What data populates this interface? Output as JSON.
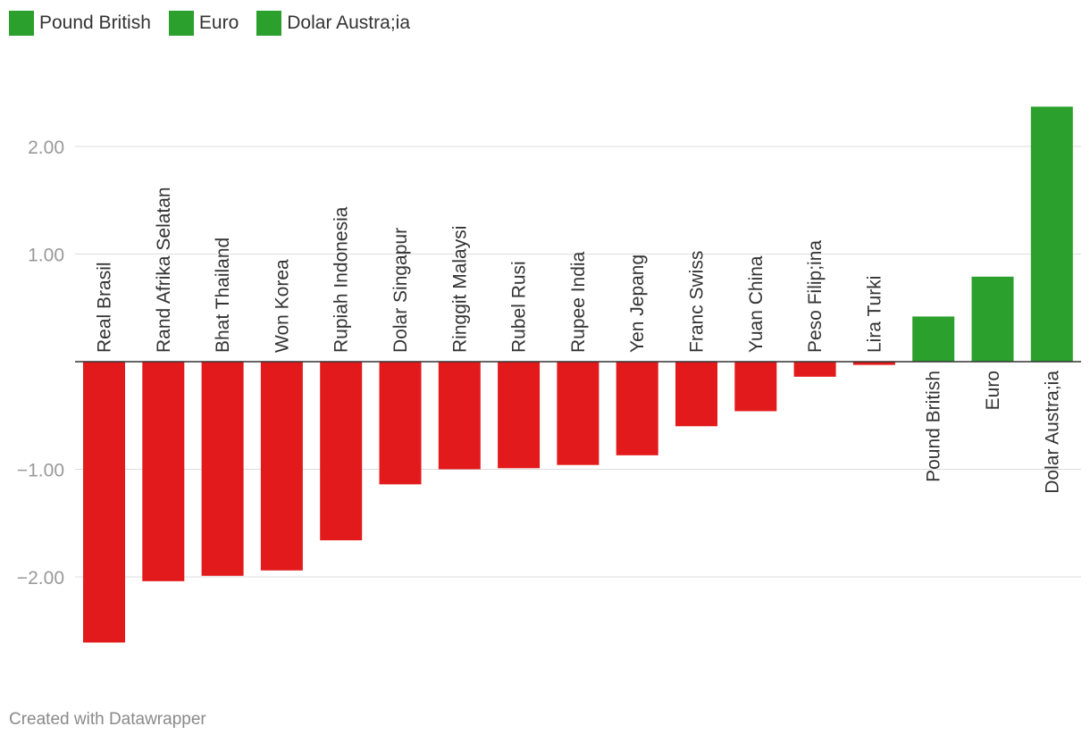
{
  "legend": {
    "items": [
      {
        "label": "Pound British",
        "color": "#2ca02c"
      },
      {
        "label": "Euro",
        "color": "#2ca02c"
      },
      {
        "label": "Dolar Austra;ia",
        "color": "#2ca02c"
      }
    ]
  },
  "footer": {
    "text": "Created with Datawrapper"
  },
  "colors": {
    "negative": "#e31a1c",
    "positive": "#2ca02c",
    "grid": "#dddddd",
    "baseline": "#333333",
    "tick_text": "#999999",
    "label_text": "#333333"
  },
  "chart_data": {
    "type": "bar",
    "title": "",
    "xlabel": "",
    "ylabel": "",
    "ylim": [
      -2.75,
      2.4
    ],
    "yticks": [
      2,
      1,
      -1,
      -2
    ],
    "ytick_labels": [
      "2.00",
      "1.00",
      "−1.00",
      "−2.00"
    ],
    "grid": true,
    "legend_position": "top-left",
    "categories": [
      "Real Brasil",
      "Rand Afrika Selatan",
      "Bhat Thailand",
      "Won Korea",
      "Rupiah Indonesia",
      "Dolar Singapur",
      "Ringgit Malaysi",
      "Rubel Rusi",
      "Rupee India",
      "Yen Jepang",
      "Franc Swiss",
      "Yuan China",
      "Peso Filip;ina",
      "Lira Turki",
      "Pound British",
      "Euro",
      "Dolar Austra;ia"
    ],
    "values": [
      -2.61,
      -2.04,
      -1.99,
      -1.94,
      -1.66,
      -1.14,
      -1.0,
      -0.99,
      -0.96,
      -0.87,
      -0.6,
      -0.46,
      -0.14,
      -0.03,
      0.42,
      0.79,
      2.37
    ]
  }
}
